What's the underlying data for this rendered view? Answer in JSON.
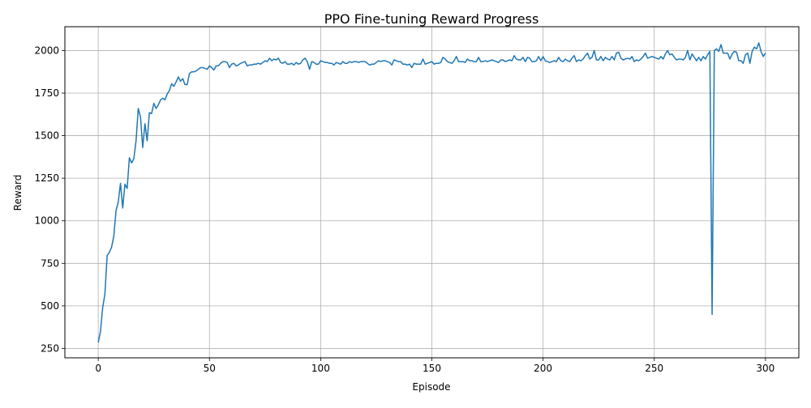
{
  "chart_data": {
    "type": "line",
    "title": "PPO Fine-tuning Reward Progress",
    "xlabel": "Episode",
    "ylabel": "Reward",
    "xlim": [
      -15,
      315
    ],
    "ylim": [
      195,
      2140
    ],
    "xticks": [
      0,
      50,
      100,
      150,
      200,
      250,
      300
    ],
    "yticks": [
      250,
      500,
      750,
      1000,
      1250,
      1500,
      1750,
      2000
    ],
    "grid": true,
    "legend": "none",
    "line_color": "#1f77b4",
    "series": [
      {
        "x": [
          0,
          1,
          2,
          3,
          4,
          5,
          6,
          7,
          8,
          9,
          10,
          11,
          12,
          13,
          14,
          15,
          16,
          17,
          18,
          19,
          20,
          21,
          22,
          23,
          24,
          25,
          26,
          27,
          28,
          29,
          30,
          31,
          32,
          33,
          34,
          35,
          36,
          37,
          38,
          39,
          40,
          41,
          42,
          43,
          44,
          45,
          46,
          47,
          48,
          49,
          50,
          51,
          52,
          53,
          54,
          55,
          56,
          57,
          58,
          59,
          60,
          61,
          62,
          63,
          64,
          65,
          66,
          67,
          68,
          69,
          70,
          71,
          72,
          73,
          74,
          75,
          76,
          77,
          78,
          79,
          80,
          81,
          82,
          83,
          84,
          85,
          86,
          87,
          88,
          89,
          90,
          91,
          92,
          93,
          94,
          95,
          96,
          97,
          98,
          99,
          100,
          101,
          102,
          103,
          104,
          105,
          106,
          107,
          108,
          109,
          110,
          111,
          112,
          113,
          114,
          115,
          116,
          117,
          118,
          119,
          120,
          121,
          122,
          123,
          124,
          125,
          126,
          127,
          128,
          129,
          130,
          131,
          132,
          133,
          134,
          135,
          136,
          137,
          138,
          139,
          140,
          141,
          142,
          143,
          144,
          145,
          146,
          147,
          148,
          149,
          150,
          151,
          152,
          153,
          154,
          155,
          156,
          157,
          158,
          159,
          160,
          161,
          162,
          163,
          164,
          165,
          166,
          167,
          168,
          169,
          170,
          171,
          172,
          173,
          174,
          175,
          176,
          177,
          178,
          179,
          180,
          181,
          182,
          183,
          184,
          185,
          186,
          187,
          188,
          189,
          190,
          191,
          192,
          193,
          194,
          195,
          196,
          197,
          198,
          199,
          200,
          201,
          202,
          203,
          204,
          205,
          206,
          207,
          208,
          209,
          210,
          211,
          212,
          213,
          214,
          215,
          216,
          217,
          218,
          219,
          220,
          221,
          222,
          223,
          224,
          225,
          226,
          227,
          228,
          229,
          230,
          231,
          232,
          233,
          234,
          235,
          236,
          237,
          238,
          239,
          240,
          241,
          242,
          243,
          244,
          245,
          246,
          247,
          248,
          249,
          250,
          251,
          252,
          253,
          254,
          255,
          256,
          257,
          258,
          259,
          260,
          261,
          262,
          263,
          264,
          265,
          266,
          267,
          268,
          269,
          270,
          271,
          272,
          273,
          274,
          275,
          276,
          277,
          278,
          279,
          280,
          281,
          282,
          283,
          284,
          285,
          286,
          287,
          288,
          289,
          290,
          291,
          292,
          293,
          294,
          295,
          296,
          297,
          298,
          299,
          300
        ],
        "values": [
          285,
          350,
          490,
          570,
          795,
          815,
          845,
          910,
          1060,
          1110,
          1220,
          1075,
          1215,
          1190,
          1370,
          1340,
          1365,
          1470,
          1660,
          1610,
          1430,
          1570,
          1470,
          1635,
          1630,
          1690,
          1660,
          1680,
          1710,
          1720,
          1710,
          1745,
          1765,
          1805,
          1790,
          1815,
          1845,
          1820,
          1835,
          1800,
          1800,
          1865,
          1875,
          1875,
          1880,
          1890,
          1900,
          1900,
          1895,
          1890,
          1910,
          1900,
          1885,
          1910,
          1910,
          1925,
          1935,
          1935,
          1930,
          1900,
          1920,
          1925,
          1910,
          1915,
          1925,
          1930,
          1935,
          1910,
          1915,
          1915,
          1920,
          1920,
          1925,
          1920,
          1930,
          1940,
          1935,
          1955,
          1940,
          1950,
          1945,
          1955,
          1930,
          1925,
          1935,
          1920,
          1920,
          1925,
          1915,
          1930,
          1920,
          1925,
          1945,
          1955,
          1935,
          1890,
          1935,
          1930,
          1920,
          1920,
          1940,
          1935,
          1930,
          1930,
          1925,
          1925,
          1915,
          1930,
          1925,
          1920,
          1935,
          1925,
          1925,
          1935,
          1930,
          1935,
          1935,
          1930,
          1935,
          1935,
          1935,
          1925,
          1915,
          1920,
          1920,
          1930,
          1940,
          1935,
          1940,
          1940,
          1935,
          1930,
          1915,
          1945,
          1940,
          1935,
          1935,
          1920,
          1920,
          1915,
          1920,
          1900,
          1925,
          1920,
          1920,
          1920,
          1950,
          1920,
          1925,
          1930,
          1935,
          1920,
          1925,
          1925,
          1930,
          1960,
          1950,
          1935,
          1930,
          1925,
          1940,
          1965,
          1935,
          1935,
          1935,
          1930,
          1950,
          1940,
          1940,
          1935,
          1935,
          1960,
          1935,
          1935,
          1940,
          1935,
          1940,
          1945,
          1940,
          1935,
          1930,
          1945,
          1945,
          1935,
          1940,
          1945,
          1940,
          1970,
          1950,
          1945,
          1945,
          1960,
          1935,
          1960,
          1955,
          1935,
          1935,
          1940,
          1965,
          1940,
          1965,
          1940,
          1935,
          1930,
          1935,
          1940,
          1935,
          1960,
          1940,
          1935,
          1950,
          1940,
          1935,
          1955,
          1970,
          1935,
          1945,
          1940,
          1950,
          1970,
          1985,
          1950,
          1960,
          2000,
          1945,
          1945,
          1965,
          1940,
          1960,
          1950,
          1945,
          1965,
          1945,
          1985,
          1990,
          1955,
          1945,
          1950,
          1955,
          1950,
          1965,
          1935,
          1945,
          1940,
          1950,
          1965,
          1985,
          1955,
          1960,
          1965,
          1960,
          1955,
          1950,
          1965,
          1950,
          1980,
          2000,
          1975,
          1980,
          1960,
          1945,
          1950,
          1950,
          1945,
          1960,
          2000,
          1945,
          1980,
          1960,
          1940,
          1960,
          1940,
          1965,
          1950,
          1975,
          1995,
          450,
          2000,
          2010,
          1995,
          2035,
          1985,
          1985,
          1985,
          1950,
          1980,
          1995,
          1990,
          1940,
          1940,
          1925,
          1975,
          1985,
          1925,
          1995,
          2020,
          2010,
          2045,
          1995,
          1965,
          1985
        ]
      }
    ]
  }
}
